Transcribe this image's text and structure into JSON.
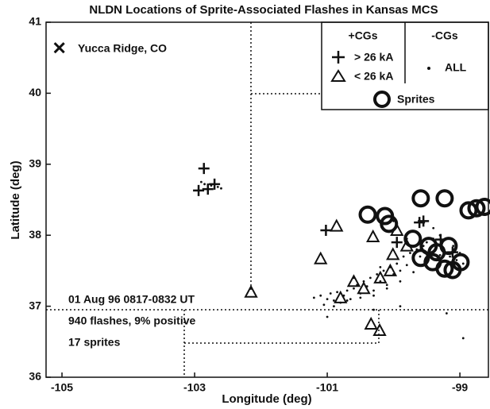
{
  "chart_data": {
    "type": "scatter",
    "title": "NLDN Locations of Sprite-Associated Flashes in Kansas MCS",
    "x_label": "Longitude (deg)",
    "y_label": "Latitude (deg)",
    "xlim": [
      -105.24,
      -98.57
    ],
    "ylim": [
      36,
      41
    ],
    "xticks": [
      -105,
      -103,
      -101,
      -99
    ],
    "yticks": [
      36,
      37,
      38,
      39,
      40,
      41
    ],
    "legend_groups": [
      "+CGs",
      "-CGs"
    ],
    "annotations": [
      "01 Aug 96  0817-0832 UT",
      "940 flashes, 9% positive",
      "17 sprites"
    ],
    "series": [
      {
        "name": "Yucca Ridge, CO",
        "marker": "x",
        "color": "#111111",
        "x": [
          -105.04
        ],
        "y": [
          40.64
        ]
      },
      {
        "name": "> 26 kA",
        "marker": "plus",
        "color": "#111111",
        "x": [
          -102.86,
          -102.94,
          -102.8,
          -102.7,
          -101.02,
          -99.61,
          -99.29,
          -99.11,
          -99.95,
          -99.55
        ],
        "y": [
          38.94,
          38.63,
          38.65,
          38.72,
          38.07,
          38.18,
          37.94,
          37.76,
          37.9,
          38.2
        ]
      },
      {
        "name": "< 26 kA",
        "marker": "triangle",
        "color": "#111111",
        "x": [
          -102.15,
          -101.1,
          -100.86,
          -100.31,
          -99.95,
          -100.01,
          -100.34,
          -100.21,
          -100.6,
          -100.45,
          -100.2,
          -100.05,
          -100.8,
          -99.8
        ],
        "y": [
          37.2,
          37.67,
          38.13,
          37.98,
          38.07,
          37.73,
          36.75,
          36.66,
          37.35,
          37.25,
          37.4,
          37.5,
          37.12,
          37.85
        ]
      },
      {
        "name": "ALL",
        "marker": "dot",
        "color": "#111111",
        "x": [
          -101.2,
          -101.1,
          -101.0,
          -100.95,
          -100.9,
          -100.85,
          -100.8,
          -100.75,
          -100.7,
          -100.65,
          -100.6,
          -100.55,
          -100.5,
          -100.45,
          -100.4,
          -100.35,
          -100.3,
          -100.25,
          -100.2,
          -100.15,
          -100.1,
          -100.05,
          -100.0,
          -99.95,
          -99.9,
          -99.85,
          -99.8,
          -99.75,
          -99.7,
          -99.65,
          -99.6,
          -99.55,
          -99.5,
          -99.45,
          -99.4,
          -99.35,
          -99.3,
          -99.25,
          -99.2,
          -99.15,
          -99.1,
          -99.05,
          -99.0,
          -98.95,
          -101.05,
          -100.9,
          -100.7,
          -100.5,
          -100.3,
          -100.1,
          -99.9,
          -99.7,
          -99.5,
          -99.3,
          -99.1,
          -100.6,
          -100.2,
          -99.8,
          -99.4,
          -100.0,
          -102.75,
          -102.85,
          -102.65,
          -102.9,
          -102.6,
          -101.0,
          -100.3,
          -99.9,
          -98.95,
          -99.2
        ],
        "y": [
          37.12,
          37.15,
          37.1,
          37.18,
          37.08,
          37.2,
          37.05,
          37.15,
          37.22,
          37.1,
          37.25,
          37.3,
          37.18,
          37.35,
          37.28,
          37.4,
          37.22,
          37.45,
          37.35,
          37.5,
          37.3,
          37.55,
          37.45,
          37.6,
          37.5,
          37.7,
          37.58,
          37.75,
          37.65,
          37.8,
          37.7,
          37.85,
          37.9,
          37.75,
          37.95,
          37.88,
          38.0,
          37.82,
          37.95,
          37.7,
          37.8,
          37.65,
          37.75,
          37.6,
          37.02,
          37.0,
          37.08,
          37.12,
          37.15,
          37.25,
          37.35,
          37.48,
          37.62,
          37.72,
          37.85,
          37.4,
          37.55,
          37.95,
          38.1,
          38.2,
          38.7,
          38.72,
          38.68,
          38.75,
          38.66,
          36.85,
          36.95,
          37.0,
          36.55,
          36.9
        ]
      },
      {
        "name": "Sprites",
        "marker": "circle",
        "color": "#111111",
        "x": [
          -100.39,
          -100.13,
          -100.07,
          -99.59,
          -99.23,
          -98.75,
          -98.87,
          -99.59,
          -99.41,
          -99.23,
          -99.11,
          -98.99,
          -99.47,
          -99.35,
          -99.71,
          -99.17,
          -98.63
        ],
        "y": [
          38.29,
          38.27,
          38.16,
          38.52,
          38.52,
          38.38,
          38.35,
          37.68,
          37.62,
          37.53,
          37.51,
          37.62,
          37.85,
          37.76,
          37.95,
          37.85,
          38.4
        ]
      }
    ]
  }
}
